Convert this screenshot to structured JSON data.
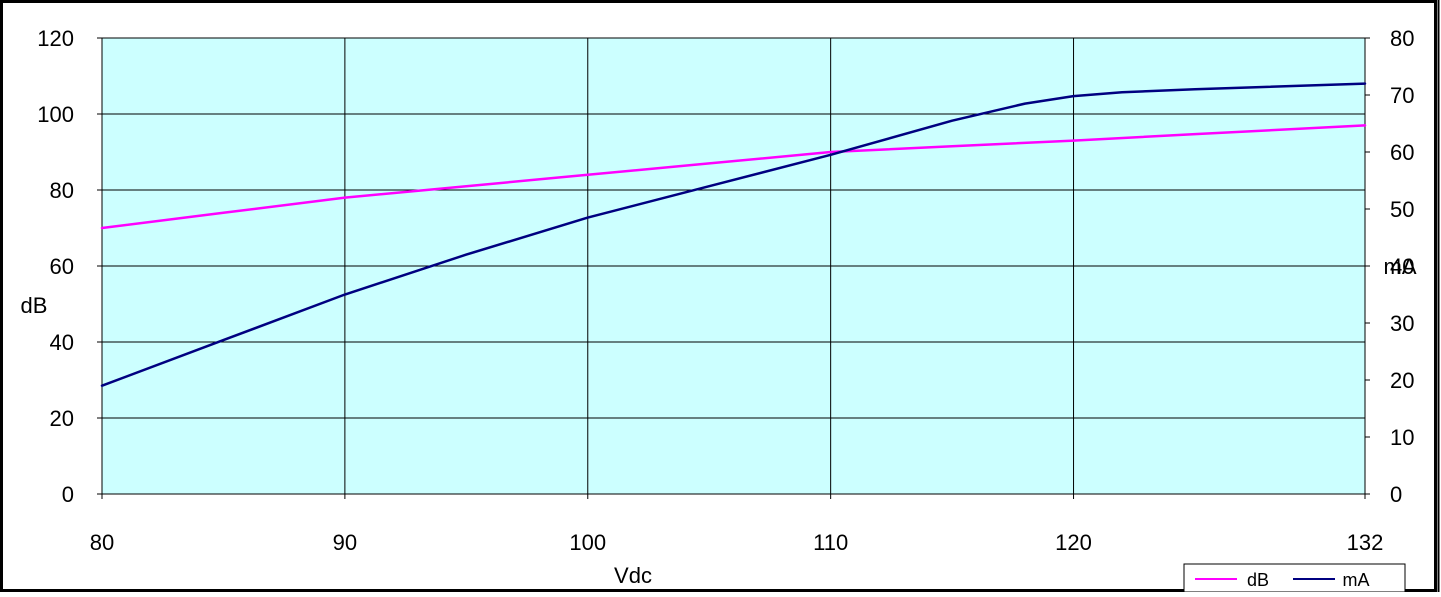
{
  "chart_data": {
    "type": "line",
    "xlabel": "Vdc",
    "ylabel": "dB",
    "y2label": "mA",
    "xlim": [
      80,
      132
    ],
    "ylim": [
      0,
      120
    ],
    "y2lim": [
      0,
      80
    ],
    "grid": true,
    "x_ticks": [
      "80",
      "90",
      "100",
      "110",
      "120",
      "132"
    ],
    "x_tick_values": [
      80,
      90,
      100,
      110,
      120,
      132
    ],
    "y_ticks": [
      "0",
      "20",
      "40",
      "60",
      "80",
      "100",
      "120"
    ],
    "y_tick_values": [
      0,
      20,
      40,
      60,
      80,
      100,
      120
    ],
    "y2_ticks": [
      "0",
      "10",
      "20",
      "30",
      "40",
      "50",
      "60",
      "70",
      "80"
    ],
    "y2_tick_values": [
      0,
      10,
      20,
      30,
      40,
      50,
      60,
      70,
      80
    ],
    "legend_position": "bottom-right",
    "series": [
      {
        "name": "dB",
        "axis": "left",
        "color": "#ff00ff",
        "x": [
          80,
          85,
          90,
          95,
          100,
          105,
          110,
          115,
          120,
          125,
          132
        ],
        "values": [
          70,
          74,
          78,
          81,
          84,
          87,
          90,
          91.5,
          93,
          94.7,
          97
        ]
      },
      {
        "name": "mA",
        "axis": "right",
        "color": "#000080",
        "x": [
          80,
          85,
          90,
          95,
          100,
          105,
          110,
          115,
          118,
          120,
          122,
          125,
          132
        ],
        "values": [
          19,
          27,
          35,
          42,
          48.5,
          54,
          59.5,
          65.5,
          68.5,
          69.8,
          70.5,
          71,
          72
        ]
      }
    ]
  }
}
